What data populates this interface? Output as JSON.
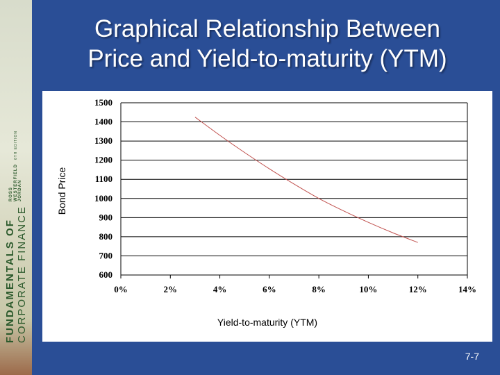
{
  "slide": {
    "title_line1": "Graphical Relationship Between",
    "title_line2": "Price and Yield-to-maturity (YTM)",
    "page_number": "7-7"
  },
  "book_spine": {
    "title_line1": "FUNDAMENTALS OF",
    "title_line2": "CORPORATE FINANCE",
    "authors": [
      "ROSS",
      "WESTERFIELD",
      "JORDAN"
    ],
    "edition": "6TH EDITION"
  },
  "colors": {
    "background": "#2a4e96",
    "curve": "#c0504d",
    "gridline": "#000000"
  },
  "chart_data": {
    "type": "line",
    "xlabel": "Yield-to-maturity (YTM)",
    "ylabel": "Bond Price",
    "x_ticks": [
      "0%",
      "2%",
      "4%",
      "6%",
      "8%",
      "10%",
      "12%",
      "14%"
    ],
    "y_ticks": [
      "1500",
      "1400",
      "1300",
      "1200",
      "1100",
      "1000",
      "900",
      "800",
      "700",
      "600"
    ],
    "xlim": [
      0,
      14
    ],
    "ylim": [
      600,
      1500
    ],
    "grid": "horizontal",
    "series": [
      {
        "x": [
          3.0,
          4.0,
          5.0,
          6.0,
          7.0,
          8.0,
          9.0,
          10.0,
          11.0,
          12.0
        ],
        "values": [
          1425,
          1330,
          1240,
          1155,
          1075,
          1000,
          935,
          875,
          820,
          770
        ]
      }
    ]
  }
}
